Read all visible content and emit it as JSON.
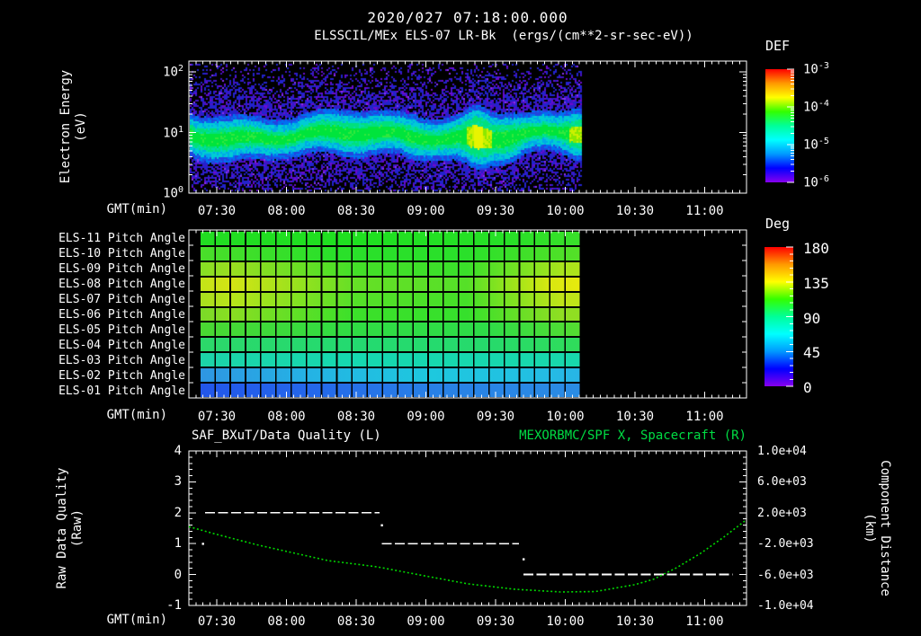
{
  "header": {
    "datetime": "2020/027 07:18:00.000",
    "instrument_title": "ELSSCIL/MEx ELS-07 LR-Bk  (ergs/(cm**2-sr-sec-eV))"
  },
  "time_axis": {
    "label": "GMT(min)",
    "start": "07:18",
    "end": "11:18",
    "major_tick_labels": [
      "07:30",
      "08:00",
      "08:30",
      "09:00",
      "09:30",
      "10:00",
      "10:30",
      "11:00"
    ],
    "minor_tick_step_min": 3
  },
  "energy_panel": {
    "y_label_line1": "Electron Energy",
    "y_label_line2": "(eV)",
    "y_ticks": [
      {
        "base": "10",
        "exp": "2"
      },
      {
        "base": "10",
        "exp": "1"
      },
      {
        "base": "10",
        "exp": "0"
      }
    ],
    "colorbar": {
      "title": "DEF",
      "tick_labels": [
        {
          "base": "10",
          "exp": "-3"
        },
        {
          "base": "10",
          "exp": "-4"
        },
        {
          "base": "10",
          "exp": "-5"
        },
        {
          "base": "10",
          "exp": "-6"
        }
      ]
    },
    "render": {
      "band_center_eV": 10,
      "data_start": "07:18",
      "data_end": "10:07",
      "enhancements": [
        {
          "t": "08:55",
          "amp": 1.0
        },
        {
          "t": "09:22",
          "amp": 2.2
        },
        {
          "t": "09:35",
          "amp": 0.9
        },
        {
          "t": "10:05",
          "amp": 1.5
        }
      ]
    }
  },
  "pitch_panel": {
    "row_labels": [
      "ELS-11 Pitch Angle",
      "ELS-10 Pitch Angle",
      "ELS-09 Pitch Angle",
      "ELS-08 Pitch Angle",
      "ELS-07 Pitch Angle",
      "ELS-06 Pitch Angle",
      "ELS-05 Pitch Angle",
      "ELS-04 Pitch Angle",
      "ELS-03 Pitch Angle",
      "ELS-02 Pitch Angle",
      "ELS-01 Pitch Angle"
    ],
    "colorbar": {
      "title": "Deg",
      "tick_labels": [
        "180",
        "135",
        "90",
        "45",
        "0"
      ]
    },
    "data_start": "07:23",
    "data_end": "10:07",
    "rows_gradients": [
      [
        "#22dd22 0%",
        "#1fe020 40%",
        "#27e027 80%",
        "#3ae02a 100%"
      ],
      [
        "#4ade2a 0%",
        "#2ae02a 35%",
        "#2ae02a 70%",
        "#55e028 100%"
      ],
      [
        "#86de24 0%",
        "#9ade20 8%",
        "#44e028 40%",
        "#3ae02a 70%",
        "#a8e41c 95%",
        "#b0e41a 100%"
      ],
      [
        "#c2e418 0%",
        "#d4e414 8%",
        "#66e026 40%",
        "#55e028 70%",
        "#d8e810 92%",
        "#e8ea0e 100%"
      ],
      [
        "#a8de1e 0%",
        "#b8e41a 8%",
        "#55e028 40%",
        "#44e028 70%",
        "#c0e418 95%"
      ],
      [
        "#7ada28 0%",
        "#8ade22 8%",
        "#3ce02a 40%",
        "#36e02c 70%",
        "#90de22 95%"
      ],
      [
        "#4ad832 0%",
        "#30dc44 40%",
        "#2edc48 75%",
        "#55dc30 100%"
      ],
      [
        "#2cd86a 0%",
        "#24da70 40%",
        "#26da6c 75%",
        "#30dc5a 100%"
      ],
      [
        "#1cd4a8 0%",
        "#16d8b0 40%",
        "#18d8ac 100%"
      ],
      [
        "#2e96e2 0%",
        "#24b4e4 30%",
        "#1ec8de 60%",
        "#22c0e2 85%",
        "#28b4e6 100%"
      ],
      [
        "#2256ea 0%",
        "#2468ea 30%",
        "#2880e6 60%",
        "#2a8ce4 100%"
      ]
    ]
  },
  "quality_panel": {
    "left_title": "SAF_BXuT/Data Quality (L)",
    "right_title": "MEXORBMC/SPF X, Spacecraft (R)",
    "left_axis": {
      "label_line1": "Raw Data Quality",
      "label_line2": "(Raw)",
      "ticks": [
        "4",
        "3",
        "2",
        "1",
        "0",
        "-1"
      ]
    },
    "right_axis": {
      "label_line1": "Component Distance",
      "label_line2": "(km)",
      "ticks": [
        "1.0e+04",
        "6.0e+03",
        "2.0e+03",
        "-2.0e+03",
        "-6.0e+03",
        "-1.0e+04"
      ]
    }
  },
  "colors": {
    "background": "#000000",
    "frame_white": "#ffffff",
    "title_green": "#00dd44",
    "curve_green": "#00d800",
    "quality_white": "#ffffff",
    "rainbow_top_to_bottom": [
      "#ff0000",
      "#ff9900",
      "#ffff00",
      "#33ff00",
      "#00ff99",
      "#00ffff",
      "#0099ff",
      "#0000ff",
      "#8800ee"
    ]
  },
  "chart_data": [
    {
      "id": "energy_spectrogram",
      "type": "heatmap",
      "title": "ELSSCIL/MEx ELS-07 LR-Bk (ergs/(cm**2-sr-sec-eV))",
      "xlabel": "GMT(min)",
      "ylabel": "Electron Energy (eV)",
      "x_range": [
        "07:18",
        "11:18"
      ],
      "x_ticks": [
        "07:30",
        "08:00",
        "08:30",
        "09:00",
        "09:30",
        "10:00",
        "10:30",
        "11:00"
      ],
      "y_scale": "log",
      "y_range_eV": [
        1,
        150
      ],
      "y_tick_values_eV": [
        1,
        10,
        100
      ],
      "colorbar": {
        "title": "DEF",
        "scale": "log",
        "range": [
          1e-06,
          0.001
        ],
        "tick_values": [
          0.001,
          0.0001,
          1e-05,
          1e-06
        ]
      },
      "data_time_span": [
        "07:18",
        "10:07"
      ],
      "features": [
        "continuous bright green-cyan flux band centered near 10 eV (~1e-4 DEF) from 07:18 to 10:07",
        "blue-violet noise floor (~1e-5 to 1e-6) above ~25 eV and below ~4 eV",
        "bright yellow-green enhancement around 09:22",
        "smaller enhancements near 08:55 and 09:35, narrow vertical streak near 10:05",
        "no data (black) after ~10:07"
      ]
    },
    {
      "id": "pitch_angle_heatmap",
      "type": "heatmap",
      "xlabel": "GMT(min)",
      "x_range": [
        "07:18",
        "11:18"
      ],
      "x_ticks": [
        "07:30",
        "08:00",
        "08:30",
        "09:00",
        "09:30",
        "10:00",
        "10:30",
        "11:00"
      ],
      "rows": [
        "ELS-11 Pitch Angle",
        "ELS-10 Pitch Angle",
        "ELS-09 Pitch Angle",
        "ELS-08 Pitch Angle",
        "ELS-07 Pitch Angle",
        "ELS-06 Pitch Angle",
        "ELS-05 Pitch Angle",
        "ELS-04 Pitch Angle",
        "ELS-03 Pitch Angle",
        "ELS-02 Pitch Angle",
        "ELS-01 Pitch Angle"
      ],
      "colorbar": {
        "title": "Deg",
        "range": [
          0,
          180
        ],
        "tick_values": [
          180,
          135,
          90,
          45,
          0
        ]
      },
      "data_time_span": [
        "07:23",
        "10:07"
      ],
      "row_mean_pitch_angle_deg": [
        110,
        116,
        124,
        136,
        127,
        119,
        111,
        101,
        90,
        72,
        48
      ],
      "features": [
        "ELS-08/ELS-09 reach ~135-150 deg (yellow) near 07:30-07:55 and 09:40-10:05",
        "ELS-01 stays near 40-60 deg (blue), ELS-02 near 60-80 deg (cyan-blue)",
        "no data (black) after ~10:07"
      ]
    },
    {
      "id": "quality_distance",
      "type": "line",
      "xlabel": "GMT(min)",
      "x_range": [
        "07:18",
        "11:18"
      ],
      "x_ticks": [
        "07:30",
        "08:00",
        "08:30",
        "09:00",
        "09:30",
        "10:00",
        "10:30",
        "11:00"
      ],
      "left_axis": {
        "label": "Raw Data Quality (Raw)",
        "range": [
          -1,
          4
        ],
        "tick_values": [
          4,
          3,
          2,
          1,
          0,
          -1
        ]
      },
      "right_axis": {
        "label": "Component Distance (km)",
        "range": [
          -10000,
          10000
        ],
        "tick_labels": [
          "1.0e+04",
          "6.0e+03",
          "2.0e+03",
          "-2.0e+03",
          "-6.0e+03",
          "-1.0e+04"
        ]
      },
      "series": [
        {
          "name": "SAF_BXuT/Data Quality (L)",
          "axis": "left",
          "color": "#ffffff",
          "line_style": "dashed",
          "segments": [
            {
              "start": "07:25",
              "end": "08:40",
              "value": 2
            },
            {
              "start": "08:41",
              "end": "09:40",
              "value": 1
            },
            {
              "start": "09:42",
              "end": "11:12",
              "value": 0
            }
          ],
          "isolated_points": [
            {
              "t": "07:24",
              "value": 1
            },
            {
              "t": "08:41",
              "value": 1.6
            },
            {
              "t": "09:42",
              "value": 0.5
            }
          ]
        },
        {
          "name": "MEXORBMC/SPF X, Spacecraft (R)",
          "axis": "right",
          "color": "#00d800",
          "line_style": "dotted",
          "points": [
            [
              "07:18",
              200
            ],
            [
              "07:30",
              -800
            ],
            [
              "07:48",
              -2200
            ],
            [
              "08:00",
              -3000
            ],
            [
              "08:18",
              -4200
            ],
            [
              "08:39",
              -5000
            ],
            [
              "09:00",
              -6200
            ],
            [
              "09:18",
              -7200
            ],
            [
              "09:38",
              -7900
            ],
            [
              "09:58",
              -8250
            ],
            [
              "10:13",
              -8200
            ],
            [
              "10:30",
              -7300
            ],
            [
              "10:38",
              -6600
            ],
            [
              "10:48",
              -5100
            ],
            [
              "10:58",
              -3300
            ],
            [
              "11:08",
              -1200
            ],
            [
              "11:18",
              1100
            ]
          ]
        }
      ]
    }
  ]
}
